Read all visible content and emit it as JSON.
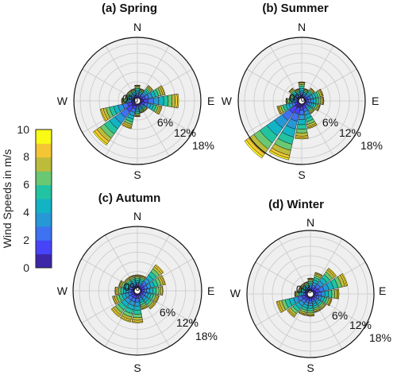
{
  "chart_data": {
    "type": "wind-rose",
    "direction_labels": [
      "N",
      "E",
      "S",
      "W"
    ],
    "ring_labels": [
      "0%",
      "6%",
      "12%",
      "18%"
    ],
    "ring_values": [
      6,
      12,
      18
    ],
    "rmax": 20,
    "sectors": 16,
    "speed_bins": [
      0,
      1,
      2,
      3,
      4,
      5,
      6,
      7,
      8,
      9,
      10
    ],
    "colorbar": {
      "label": "Wind Speeds in m/s",
      "min": 0,
      "max": 10,
      "ticks": [
        "0",
        "2",
        "4",
        "6",
        "8",
        "10"
      ],
      "colormap": [
        "#3e26a8",
        "#4743f9",
        "#3e72f1",
        "#2798d6",
        "#12b3c4",
        "#22c3a0",
        "#6ac872",
        "#bcbc3a",
        "#f5c634",
        "#f9fb15"
      ]
    },
    "panels": [
      {
        "title": "(a) Spring",
        "sector_totals": [
          4,
          3,
          5,
          8,
          12,
          7,
          3,
          3,
          4,
          8,
          16,
          11,
          4,
          3,
          3,
          3
        ],
        "bin_fractions": [
          0.08,
          0.12,
          0.14,
          0.14,
          0.13,
          0.12,
          0.1,
          0.08,
          0.06,
          0.03
        ]
      },
      {
        "title": "(b) Summer",
        "sector_totals": [
          5,
          3,
          4,
          6,
          6,
          5,
          4,
          8,
          11,
          18,
          21,
          7,
          4,
          3,
          4,
          3
        ],
        "bin_fractions": [
          0.07,
          0.11,
          0.13,
          0.14,
          0.14,
          0.13,
          0.11,
          0.09,
          0.05,
          0.03
        ]
      },
      {
        "title": "(c) Autumn",
        "sector_totals": [
          4,
          4,
          9,
          8,
          7,
          6,
          6,
          5,
          9,
          9,
          9,
          7,
          6,
          5,
          4,
          4
        ],
        "bin_fractions": [
          0.06,
          0.1,
          0.12,
          0.14,
          0.14,
          0.14,
          0.12,
          0.09,
          0.06,
          0.03
        ]
      },
      {
        "title": "(d) Winter",
        "sector_totals": [
          4,
          6,
          9,
          11,
          8,
          6,
          5,
          5,
          6,
          6,
          8,
          10,
          4,
          3,
          3,
          3
        ],
        "bin_fractions": [
          0.07,
          0.11,
          0.13,
          0.14,
          0.14,
          0.13,
          0.11,
          0.09,
          0.05,
          0.03
        ]
      }
    ]
  }
}
